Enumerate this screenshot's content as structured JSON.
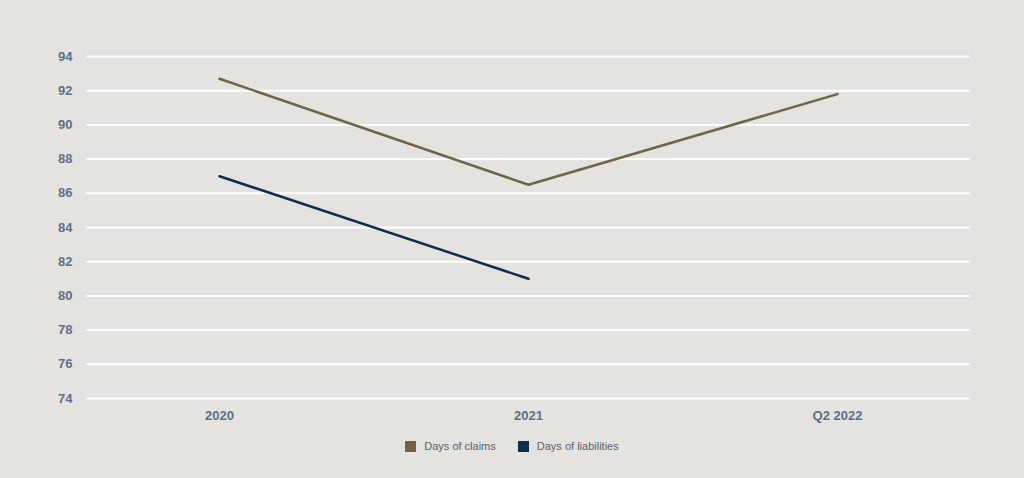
{
  "chart_data": {
    "type": "line",
    "categories": [
      "2020",
      "2021",
      "Q2 2022"
    ],
    "series": [
      {
        "name": "Days of claims",
        "color": "#716446",
        "values": [
          92.7,
          86.5,
          91.8
        ]
      },
      {
        "name": "Days of liabilities",
        "color": "#0e2c4e",
        "values": [
          87,
          81,
          null
        ]
      }
    ],
    "ylim": [
      74,
      94
    ],
    "yticks": [
      74,
      76,
      78,
      80,
      82,
      84,
      86,
      88,
      90,
      92,
      94
    ],
    "grid": true,
    "legend": "bottom"
  }
}
